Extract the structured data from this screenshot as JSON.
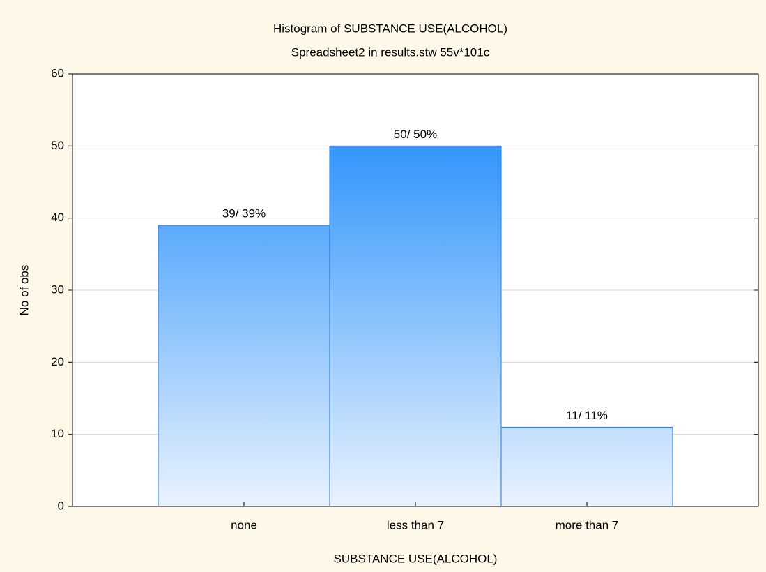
{
  "chart_data": {
    "type": "bar",
    "title": "Histogram of SUBSTANCE USE(ALCOHOL)",
    "subtitle": "Spreadsheet2 in results.stw 55v*101c",
    "x_label": "SUBSTANCE USE(ALCOHOL)",
    "y_label": "No of obs",
    "categories": [
      "none",
      "less than 7",
      "more than 7"
    ],
    "values": [
      39,
      50,
      11
    ],
    "value_labels": [
      "39/ 39%",
      "50/ 50%",
      "11/ 11%"
    ],
    "color": "#2f94fb",
    "ylim": [
      0,
      60
    ],
    "yticks": [
      0,
      10,
      20,
      30,
      40,
      50,
      60
    ],
    "grid": true
  }
}
